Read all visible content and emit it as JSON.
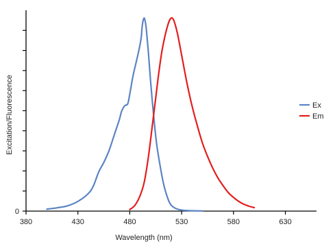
{
  "chart_data": {
    "type": "line",
    "xlabel": "Wavelength (nm)",
    "ylabel": "Excitation/Fluorescence",
    "xlim": [
      380,
      660
    ],
    "ylim": [
      0,
      1.03
    ],
    "x_ticks": [
      380,
      430,
      480,
      530,
      580,
      630
    ],
    "y_ticks": [
      0
    ],
    "y_minor_ticks": [
      0.103,
      0.206,
      0.309,
      0.412,
      0.515,
      0.618,
      0.721,
      0.824,
      0.927
    ],
    "grid": false,
    "legend_position": "right",
    "series": [
      {
        "name": "Ex",
        "color": "#5b84c4",
        "points": [
          [
            400,
            0.01
          ],
          [
            410,
            0.017
          ],
          [
            420,
            0.027
          ],
          [
            430,
            0.05
          ],
          [
            440,
            0.09
          ],
          [
            445,
            0.13
          ],
          [
            450,
            0.2
          ],
          [
            455,
            0.25
          ],
          [
            460,
            0.31
          ],
          [
            465,
            0.39
          ],
          [
            470,
            0.47
          ],
          [
            472,
            0.51
          ],
          [
            475,
            0.54
          ],
          [
            478,
            0.55
          ],
          [
            480,
            0.6
          ],
          [
            483,
            0.69
          ],
          [
            486,
            0.76
          ],
          [
            489,
            0.83
          ],
          [
            491,
            0.89
          ],
          [
            492,
            0.95
          ],
          [
            493,
            0.98
          ],
          [
            494,
            0.99
          ],
          [
            495,
            0.97
          ],
          [
            496,
            0.93
          ],
          [
            498,
            0.81
          ],
          [
            500,
            0.67
          ],
          [
            503,
            0.49
          ],
          [
            506,
            0.34
          ],
          [
            510,
            0.21
          ],
          [
            513,
            0.13
          ],
          [
            517,
            0.06
          ],
          [
            520,
            0.03
          ],
          [
            525,
            0.012
          ],
          [
            532,
            0.004
          ],
          [
            540,
            0.002
          ],
          [
            550,
            0.001
          ]
        ]
      },
      {
        "name": "Em",
        "color": "#e41d1d",
        "points": [
          [
            480,
            0.008
          ],
          [
            485,
            0.03
          ],
          [
            490,
            0.08
          ],
          [
            494,
            0.15
          ],
          [
            498,
            0.28
          ],
          [
            502,
            0.45
          ],
          [
            505,
            0.58
          ],
          [
            508,
            0.71
          ],
          [
            511,
            0.82
          ],
          [
            514,
            0.9
          ],
          [
            517,
            0.96
          ],
          [
            519,
            0.985
          ],
          [
            521,
            0.99
          ],
          [
            523,
            0.97
          ],
          [
            526,
            0.91
          ],
          [
            530,
            0.8
          ],
          [
            535,
            0.66
          ],
          [
            540,
            0.54
          ],
          [
            545,
            0.44
          ],
          [
            550,
            0.35
          ],
          [
            555,
            0.28
          ],
          [
            560,
            0.22
          ],
          [
            565,
            0.17
          ],
          [
            570,
            0.13
          ],
          [
            575,
            0.095
          ],
          [
            580,
            0.07
          ],
          [
            585,
            0.05
          ],
          [
            590,
            0.035
          ],
          [
            595,
            0.025
          ],
          [
            600,
            0.018
          ]
        ]
      }
    ]
  }
}
